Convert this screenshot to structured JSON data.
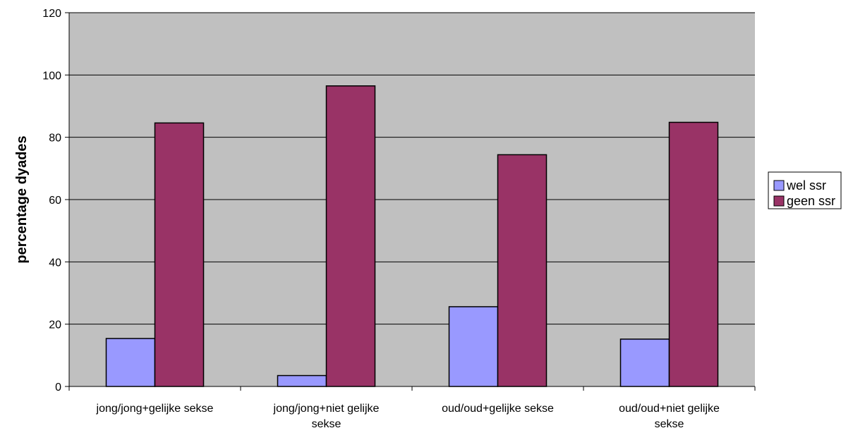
{
  "chart_data": {
    "type": "bar",
    "title": "",
    "xlabel": "",
    "ylabel": "percentage dyades",
    "ylim": [
      0,
      120
    ],
    "yticks": [
      0,
      20,
      40,
      60,
      80,
      100,
      120
    ],
    "grid": true,
    "legend_position": "right",
    "categories": [
      [
        "jong/jong+gelijke sekse"
      ],
      [
        "jong/jong+niet gelijke",
        "sekse"
      ],
      [
        "oud/oud+gelijke sekse"
      ],
      [
        "oud/oud+niet gelijke",
        "sekse"
      ]
    ],
    "series": [
      {
        "name": "wel ssr",
        "color": "#9999ff",
        "values": [
          15.4,
          3.5,
          25.6,
          15.2
        ]
      },
      {
        "name": "geen ssr",
        "color": "#993366",
        "values": [
          84.6,
          96.5,
          74.4,
          84.8
        ]
      }
    ],
    "plot_background": "#c0c0c0"
  }
}
